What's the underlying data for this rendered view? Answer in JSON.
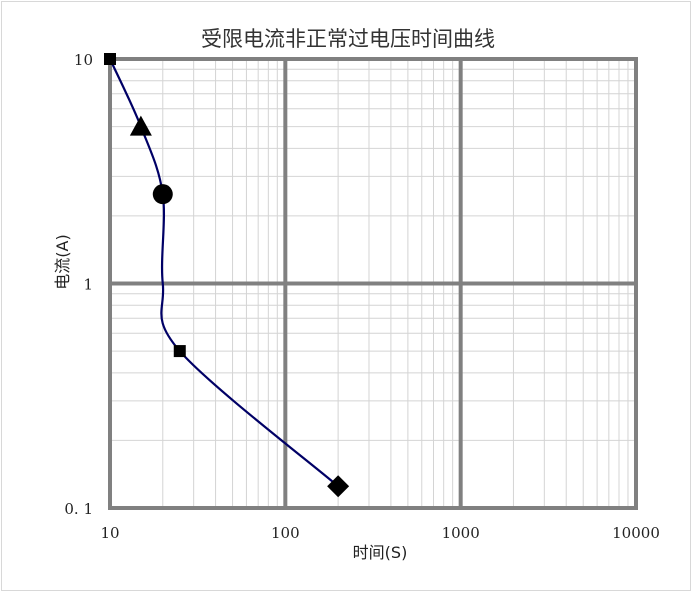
{
  "chart_data": {
    "type": "line",
    "title": "受限电流非正常过电压时间曲线",
    "xlabel": "时间(S)",
    "ylabel": "电流(A)",
    "x_scale": "log",
    "y_scale": "log",
    "xlim": [
      10,
      10000
    ],
    "ylim": [
      0.1,
      10
    ],
    "x_ticks": [
      "10",
      "100",
      "1000",
      "10000"
    ],
    "y_ticks": [
      "0.1",
      "1",
      "10"
    ],
    "grid": true,
    "line_color": "#000066",
    "series": [
      {
        "points": [
          {
            "x": 10,
            "y": 10,
            "marker": "square"
          },
          {
            "x": 15,
            "y": 5,
            "marker": "triangle"
          },
          {
            "x": 20,
            "y": 2.5,
            "marker": "circle"
          },
          {
            "x": 20,
            "y": 1,
            "marker": "none"
          },
          {
            "x": 25,
            "y": 0.5,
            "marker": "square"
          },
          {
            "x": 200,
            "y": 0.125,
            "marker": "diamond"
          }
        ]
      }
    ]
  }
}
